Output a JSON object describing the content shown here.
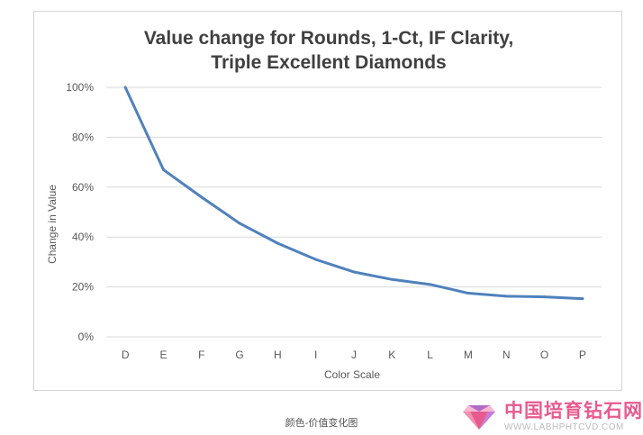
{
  "chart_data": {
    "type": "line",
    "title_lines": [
      "Value change for Rounds, 1-Ct, IF Clarity,",
      "Triple Excellent Diamonds"
    ],
    "xlabel": "Color Scale",
    "ylabel": "Change in Value",
    "categories": [
      "D",
      "E",
      "F",
      "G",
      "H",
      "I",
      "J",
      "K",
      "L",
      "M",
      "N",
      "O",
      "P"
    ],
    "values": [
      100,
      67,
      56,
      45.5,
      37.5,
      31,
      26,
      23,
      21,
      17.5,
      16.3,
      16,
      15.3
    ],
    "ylim": [
      0,
      100
    ],
    "yticks": [
      0,
      20,
      40,
      60,
      80,
      100
    ],
    "ytick_labels": [
      "0%",
      "20%",
      "40%",
      "60%",
      "80%",
      "100%"
    ],
    "grid": true,
    "line_color": "#4f81bd"
  },
  "caption": "颜色-价值变化图",
  "watermark": {
    "chinese": "中国培育钻石网",
    "english": "WWW.LABHPHTCVD.COM"
  }
}
